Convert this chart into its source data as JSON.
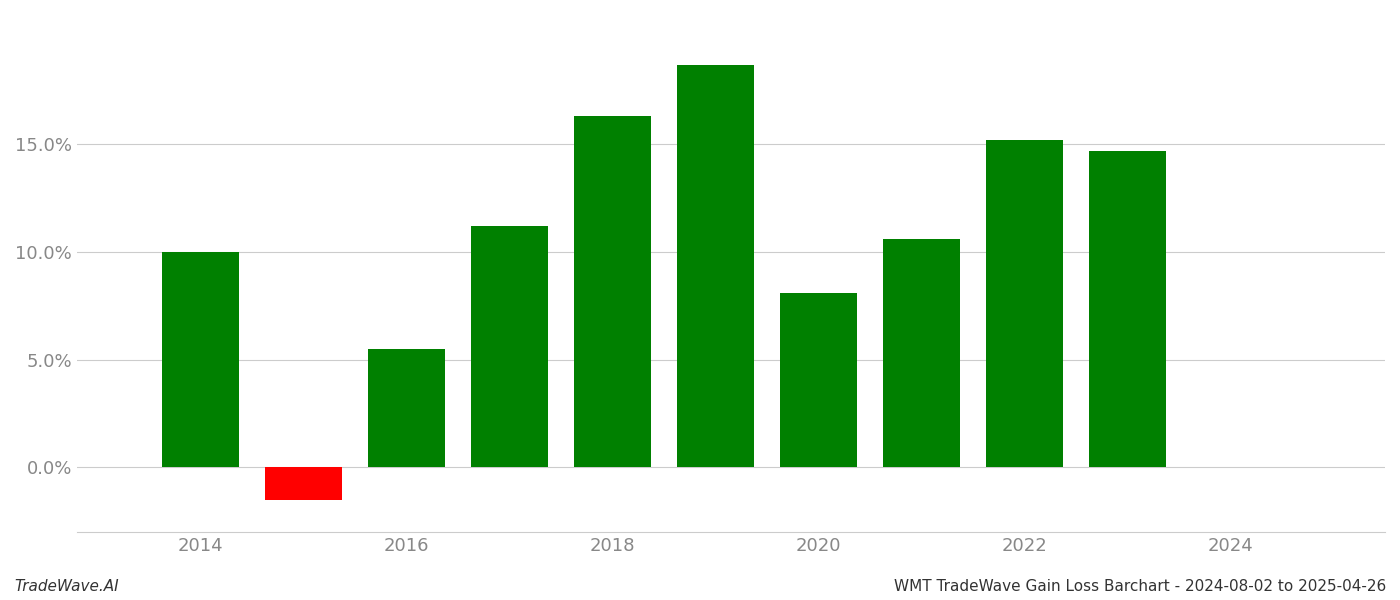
{
  "years": [
    2014,
    2015,
    2016,
    2017,
    2018,
    2019,
    2020,
    2021,
    2022,
    2023
  ],
  "values": [
    0.1,
    -0.015,
    0.055,
    0.112,
    0.163,
    0.187,
    0.081,
    0.106,
    0.152,
    0.147
  ],
  "bar_colors_positive": "#008000",
  "bar_colors_negative": "#ff0000",
  "background_color": "#ffffff",
  "grid_color": "#cccccc",
  "tick_color": "#888888",
  "footer_left": "TradeWave.AI",
  "footer_right": "WMT TradeWave Gain Loss Barchart - 2024-08-02 to 2025-04-26",
  "footer_fontsize": 11,
  "ylabel_ticks": [
    0.0,
    0.05,
    0.1,
    0.15
  ],
  "ylim": [
    -0.03,
    0.21
  ],
  "xlim": [
    2012.8,
    2025.5
  ],
  "xticks": [
    2014,
    2016,
    2018,
    2020,
    2022,
    2024
  ],
  "bar_width": 0.75,
  "tick_fontsize": 13,
  "spine_color": "#cccccc"
}
